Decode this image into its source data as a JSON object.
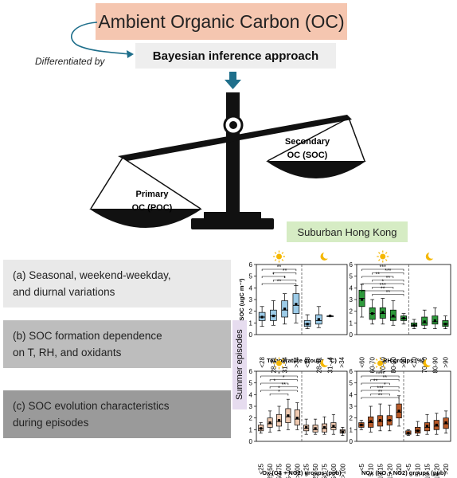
{
  "header": {
    "title": "Ambient Organic Carbon (OC)",
    "differentiated_by": "Differentiated by",
    "method": "Bayesian inference approach"
  },
  "scale": {
    "primary_line1": "Primary",
    "primary_line2": "OC (POC)",
    "secondary_line1": "Secondary",
    "secondary_line2": "OC (SOC)"
  },
  "location": "Suburban Hong Kong",
  "sections": {
    "a_line1": "(a) Seasonal, weekend-weekday,",
    "a_line2": "and diurnal variations",
    "b_line1": "(b) SOC formation dependence",
    "b_line2": "on T, RH, and oxidants",
    "c_line1": "(c) SOC evolution characteristics",
    "c_line2": "during episodes"
  },
  "summer_label": "Summer episodes",
  "colors": {
    "title_bg": "#f5c6b0",
    "arrow": "#1f6f8b",
    "scale": "#111111",
    "temp": "#9ccbe8",
    "rh": "#2e9b3c",
    "ox": "#efc9b0",
    "nox": "#b85a28",
    "location_bg": "#d6ecc4"
  },
  "chart_data": [
    {
      "type": "box",
      "id": "temp",
      "ylabel": "SOC (ugC m⁻³)",
      "xlabel": "Temperature groups (°C)",
      "ylim": [
        0,
        6
      ],
      "yticks": [
        0,
        1,
        2,
        3,
        4,
        5,
        6
      ],
      "categories": [
        "<28",
        "28-31",
        "31-34",
        ">34",
        "<28",
        "28-31",
        "31-34",
        ">34"
      ],
      "day_night_split": 4,
      "boxes": [
        {
          "min": 0.7,
          "q1": 1.2,
          "median": 1.5,
          "q3": 1.9,
          "max": 2.4,
          "mean": 1.5
        },
        {
          "min": 0.8,
          "q1": 1.2,
          "median": 1.6,
          "q3": 2.1,
          "max": 2.9,
          "mean": 1.6
        },
        {
          "min": 0.9,
          "q1": 1.5,
          "median": 2.1,
          "q3": 2.9,
          "max": 3.5,
          "mean": 2.2
        },
        {
          "min": 1.0,
          "q1": 1.8,
          "median": 2.5,
          "q3": 3.5,
          "max": 4.2,
          "mean": 2.6
        },
        {
          "min": 0.5,
          "q1": 0.7,
          "median": 0.9,
          "q3": 1.2,
          "max": 1.7,
          "mean": 0.9
        },
        {
          "min": 0.6,
          "q1": 0.9,
          "median": 1.2,
          "q3": 1.7,
          "max": 2.4,
          "mean": 1.3
        },
        {
          "min": 1.6,
          "q1": 1.6,
          "median": 1.6,
          "q3": 1.6,
          "max": 1.6,
          "mean": 1.6,
          "thin": true
        },
        null
      ],
      "significance": [
        "**",
        "**",
        "*",
        "*",
        "**"
      ]
    },
    {
      "type": "box",
      "id": "rh",
      "ylabel": "",
      "xlabel": "RH groups (%)",
      "ylim": [
        0,
        6
      ],
      "yticks": [
        0,
        1,
        2,
        3,
        4,
        5,
        6
      ],
      "categories": [
        "<60",
        "60-70",
        "70-80",
        "80-90",
        ">90",
        "<70",
        "70-80",
        "80-90",
        ">90"
      ],
      "day_night_split": 5,
      "boxes": [
        {
          "min": 1.5,
          "q1": 2.4,
          "median": 3.1,
          "q3": 3.8,
          "max": 4.3,
          "mean": 3.0
        },
        {
          "min": 0.9,
          "q1": 1.3,
          "median": 1.8,
          "q3": 2.3,
          "max": 3.0,
          "mean": 1.8
        },
        {
          "min": 0.9,
          "q1": 1.4,
          "median": 1.8,
          "q3": 2.3,
          "max": 3.1,
          "mean": 1.9
        },
        {
          "min": 0.8,
          "q1": 1.2,
          "median": 1.5,
          "q3": 2.1,
          "max": 2.9,
          "mean": 1.6
        },
        {
          "min": 0.9,
          "q1": 1.2,
          "median": 1.4,
          "q3": 1.6,
          "max": 1.8,
          "mean": 1.4
        },
        {
          "min": 0.5,
          "q1": 0.7,
          "median": 0.8,
          "q3": 1.0,
          "max": 1.3,
          "mean": 0.8
        },
        {
          "min": 0.5,
          "q1": 0.8,
          "median": 1.0,
          "q3": 1.5,
          "max": 2.1,
          "mean": 1.1
        },
        {
          "min": 0.5,
          "q1": 0.9,
          "median": 1.1,
          "q3": 1.6,
          "max": 2.3,
          "mean": 1.2
        },
        {
          "min": 0.5,
          "q1": 0.7,
          "median": 0.9,
          "q3": 1.2,
          "max": 1.6,
          "mean": 0.9
        }
      ],
      "significance": [
        "***",
        "***",
        "**",
        "**",
        "*",
        "***",
        "**",
        "**"
      ]
    },
    {
      "type": "box",
      "id": "ox",
      "ylabel": "",
      "xlabel": "Ox (O3 + NO2) groups (ppb)",
      "ylim": [
        0,
        6
      ],
      "yticks": [
        0,
        1,
        2,
        3,
        4,
        5,
        6
      ],
      "categories": [
        "<25",
        "25-50",
        "50-75",
        "75-100",
        ">100",
        "<25",
        "25-50",
        "50-75",
        "75-100",
        ">100"
      ],
      "day_night_split": 5,
      "boxes": [
        {
          "min": 0.7,
          "q1": 0.9,
          "median": 1.1,
          "q3": 1.4,
          "max": 1.6,
          "mean": 1.1
        },
        {
          "min": 0.8,
          "q1": 1.2,
          "median": 1.5,
          "q3": 2.0,
          "max": 2.6,
          "mean": 1.6
        },
        {
          "min": 0.9,
          "q1": 1.3,
          "median": 1.7,
          "q3": 2.3,
          "max": 3.0,
          "mean": 1.8
        },
        {
          "min": 1.0,
          "q1": 1.6,
          "median": 2.1,
          "q3": 2.8,
          "max": 3.6,
          "mean": 2.2
        },
        {
          "min": 1.0,
          "q1": 1.4,
          "median": 1.9,
          "q3": 2.7,
          "max": 3.3,
          "mean": 2.0
        },
        {
          "min": 0.6,
          "q1": 0.9,
          "median": 1.1,
          "q3": 1.4,
          "max": 1.9,
          "mean": 1.2
        },
        {
          "min": 0.6,
          "q1": 0.8,
          "median": 1.0,
          "q3": 1.4,
          "max": 1.9,
          "mean": 1.1
        },
        {
          "min": 0.6,
          "q1": 0.8,
          "median": 1.1,
          "q3": 1.5,
          "max": 2.1,
          "mean": 1.2
        },
        {
          "min": 0.6,
          "q1": 1.0,
          "median": 1.2,
          "q3": 1.6,
          "max": 2.3,
          "mean": 1.3
        },
        {
          "min": 0.5,
          "q1": 0.7,
          "median": 0.9,
          "q3": 1.0,
          "max": 1.2,
          "mean": 0.8
        }
      ],
      "significance": [
        "*",
        "*",
        "*",
        "**",
        "*",
        "*"
      ]
    },
    {
      "type": "box",
      "id": "nox",
      "ylabel": "",
      "xlabel": "NOx (NO + NO2) groups (ppb)",
      "ylim": [
        0,
        6
      ],
      "yticks": [
        0,
        1,
        2,
        3,
        4,
        5,
        6
      ],
      "categories": [
        "<5",
        "5-10",
        "10-15",
        "15-20",
        ">20",
        "<5",
        "5-10",
        "10-15",
        "15-20",
        ">20"
      ],
      "day_night_split": 5,
      "boxes": [
        {
          "min": 1.0,
          "q1": 1.2,
          "median": 1.4,
          "q3": 1.6,
          "max": 1.8,
          "mean": 1.4
        },
        {
          "min": 0.8,
          "q1": 1.2,
          "median": 1.6,
          "q3": 2.1,
          "max": 3.0,
          "mean": 1.7
        },
        {
          "min": 0.9,
          "q1": 1.3,
          "median": 1.7,
          "q3": 2.2,
          "max": 3.2,
          "mean": 1.8
        },
        {
          "min": 0.9,
          "q1": 1.4,
          "median": 1.8,
          "q3": 2.2,
          "max": 3.1,
          "mean": 1.8
        },
        {
          "min": 1.3,
          "q1": 2.0,
          "median": 2.5,
          "q3": 3.2,
          "max": 3.9,
          "mean": 2.6
        },
        {
          "min": 0.5,
          "q1": 0.6,
          "median": 0.7,
          "q3": 0.9,
          "max": 1.0,
          "mean": 0.7
        },
        {
          "min": 0.5,
          "q1": 0.7,
          "median": 0.9,
          "q3": 1.2,
          "max": 1.7,
          "mean": 0.9
        },
        {
          "min": 0.6,
          "q1": 0.9,
          "median": 1.2,
          "q3": 1.6,
          "max": 2.3,
          "mean": 1.3
        },
        {
          "min": 0.6,
          "q1": 1.0,
          "median": 1.3,
          "q3": 1.8,
          "max": 2.4,
          "mean": 1.4
        },
        {
          "min": 0.7,
          "q1": 1.1,
          "median": 1.5,
          "q3": 2.0,
          "max": 2.6,
          "mean": 1.6
        }
      ],
      "significance": [
        "****",
        "**",
        "**",
        "*",
        "***",
        "**",
        "**"
      ]
    }
  ]
}
